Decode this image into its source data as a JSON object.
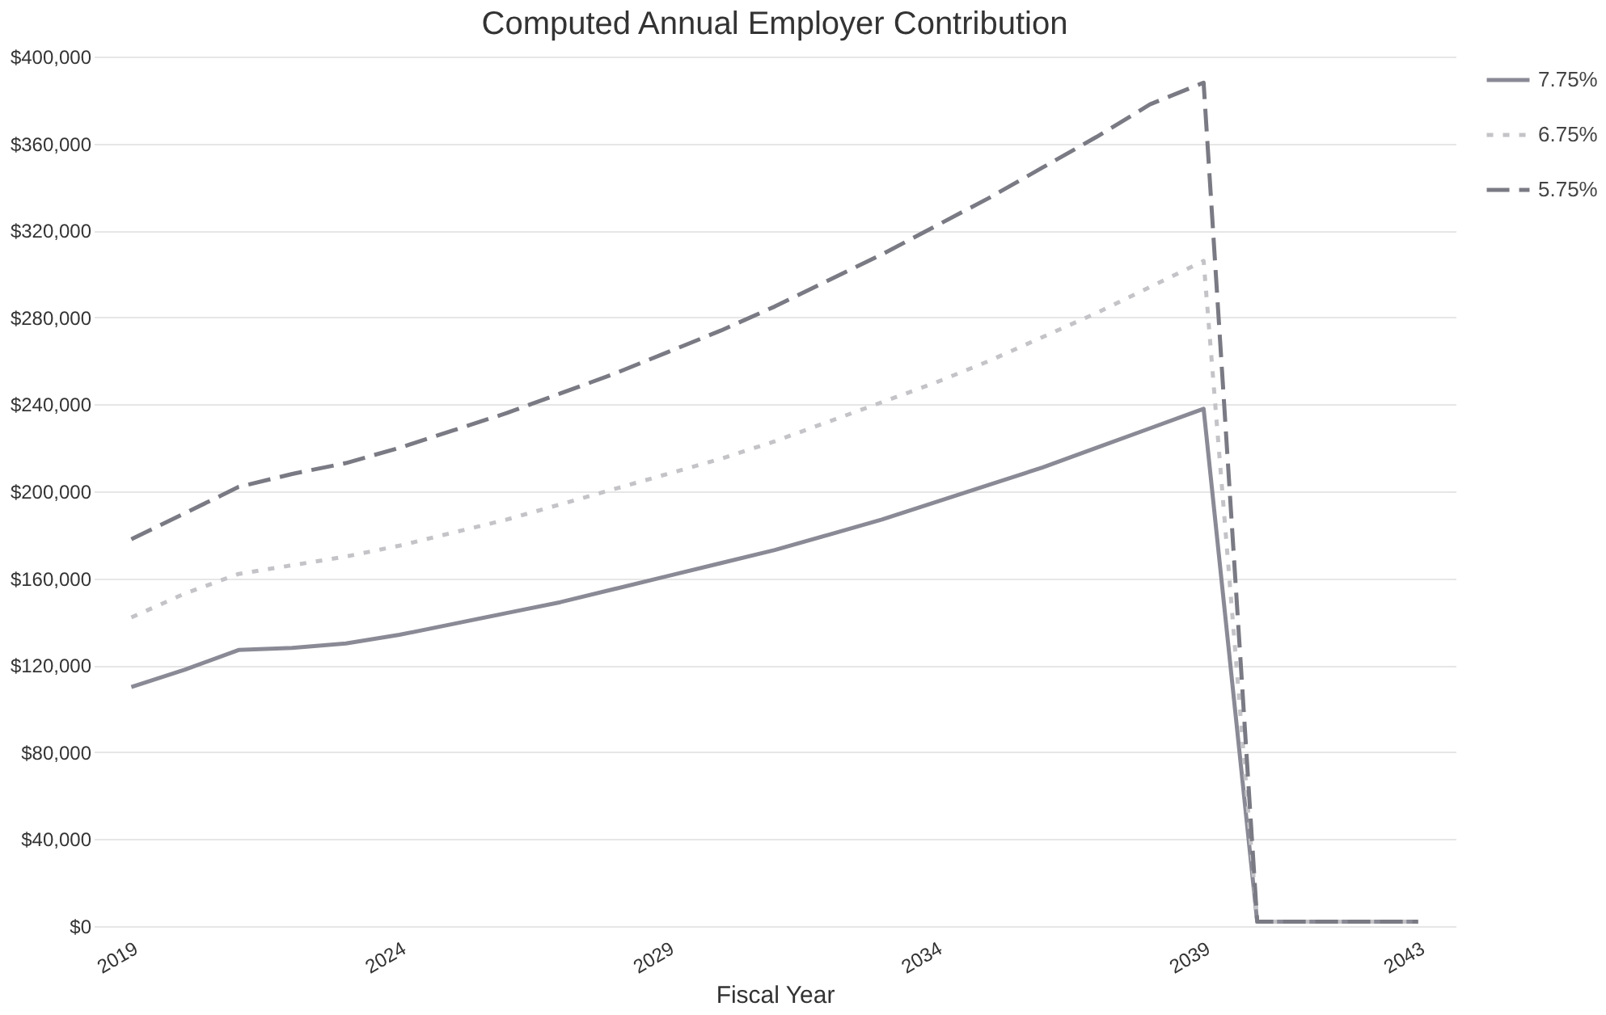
{
  "chart_data": {
    "type": "line",
    "title": "Computed Annual Employer Contribution",
    "xlabel": "Fiscal Year",
    "x": [
      2019,
      2020,
      2021,
      2022,
      2023,
      2024,
      2025,
      2026,
      2027,
      2028,
      2029,
      2030,
      2031,
      2032,
      2033,
      2034,
      2035,
      2036,
      2037,
      2038,
      2039,
      2040,
      2041,
      2042,
      2043
    ],
    "series": [
      {
        "name": "7.75%",
        "color": "#8a8a96",
        "line_style": "solid",
        "values": [
          110000,
          118000,
          127000,
          128000,
          130000,
          134000,
          139000,
          144000,
          149000,
          155000,
          161000,
          167000,
          173000,
          180000,
          187000,
          195000,
          203000,
          211000,
          220000,
          229000,
          238000,
          2000,
          2000,
          2000,
          2000
        ]
      },
      {
        "name": "6.75%",
        "color": "#c4c4c8",
        "line_style": "dotted",
        "values": [
          142000,
          153000,
          162000,
          166000,
          170000,
          175000,
          181000,
          187000,
          194000,
          201000,
          208000,
          215000,
          223000,
          232000,
          241000,
          250000,
          260000,
          271000,
          282000,
          294000,
          306000,
          2000,
          2000,
          2000,
          2000
        ]
      },
      {
        "name": "5.75%",
        "color": "#7a7a84",
        "line_style": "dashed",
        "values": [
          178000,
          190000,
          202000,
          208000,
          213000,
          220000,
          228000,
          236000,
          245000,
          254000,
          264000,
          274000,
          285000,
          297000,
          309000,
          322000,
          335000,
          349000,
          363000,
          378000,
          388000,
          2000,
          2000,
          2000,
          2000
        ]
      }
    ],
    "xlim": [
      2018.3,
      2043.7
    ],
    "xticks": [
      2019,
      2024,
      2029,
      2034,
      2039,
      2043
    ],
    "ylim": [
      0,
      400000
    ],
    "yticks": [
      {
        "value": 0,
        "label": "$0"
      },
      {
        "value": 40000,
        "label": "$40,000"
      },
      {
        "value": 80000,
        "label": "$80,000"
      },
      {
        "value": 120000,
        "label": "$120,000"
      },
      {
        "value": 160000,
        "label": "$160,000"
      },
      {
        "value": 200000,
        "label": "$200,000"
      },
      {
        "value": 240000,
        "label": "$240,000"
      },
      {
        "value": 280000,
        "label": "$280,000"
      },
      {
        "value": 320000,
        "label": "$320,000"
      },
      {
        "value": 360000,
        "label": "$360,000"
      },
      {
        "value": 400000,
        "label": "$400,000"
      }
    ],
    "grid": "y",
    "legend": "right"
  }
}
